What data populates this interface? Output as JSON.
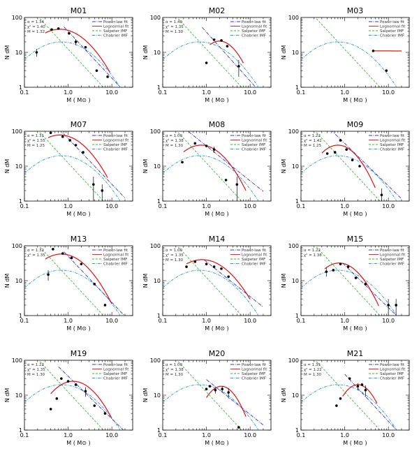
{
  "chart_data": {
    "type": "scatter",
    "layout": "grid-4x3",
    "xlabel": "M ( M⊙ )",
    "ylabel": "N dM",
    "xlim": [
      0.1,
      30
    ],
    "ylim": [
      1,
      100
    ],
    "xscale": "log",
    "yscale": "log",
    "xtick_labels": [
      "0.1",
      "1.0",
      "10.0"
    ],
    "ytick_labels": [
      "1",
      "10",
      "100"
    ],
    "xtick_values": [
      0.1,
      1,
      10
    ],
    "ytick_values": [
      1,
      10,
      100
    ],
    "legend_entries": [
      "Power-law fit",
      "Lognormal fit",
      "Salpeter IMF",
      "Chabrier IMF"
    ],
    "colors": {
      "powerlaw": "#3333cc",
      "lognormal": "#e01010",
      "salpeter": "#33bb33",
      "chabrier": "#2299dd",
      "points": "#000000"
    },
    "panels": [
      {
        "title": "M01",
        "legend_labels": [
          "Power-law fit",
          "Lognormal fit",
          "Salpeter IMF",
          "Chabrier IMF"
        ],
        "stats": [
          "α = 1.34",
          "χ² = 1.40",
          "M = 1.32"
        ],
        "points": [
          {
            "m": 0.19,
            "n": 10,
            "e": 2.5
          },
          {
            "m": 0.42,
            "n": 45,
            "e": 0
          },
          {
            "m": 0.6,
            "n": 48,
            "e": 0
          },
          {
            "m": 1.05,
            "n": 35,
            "e": 0
          },
          {
            "m": 1.5,
            "n": 20,
            "e": 4
          },
          {
            "m": 2.5,
            "n": 14,
            "e": 0
          },
          {
            "m": 4.5,
            "n": 3,
            "e": 0
          },
          {
            "m": 8,
            "n": 2,
            "e": 0
          }
        ],
        "powerlaw": {
          "amp": 40,
          "slope": -1.34,
          "x0": 0.8,
          "x1": 20
        },
        "lognormal": {
          "peak": 46,
          "mc": 0.65,
          "sigma": 0.48,
          "x0": 0.3,
          "x1": 9
        }
      },
      {
        "title": "M02",
        "legend_labels": [
          "Power-law fit",
          "Lognormal fit",
          "Salpeter IMF",
          "Chabrier IMF"
        ],
        "stats": [
          "α = 1.40",
          "χ² = 1.35",
          "M = 1.30"
        ],
        "points": [
          {
            "m": 1.0,
            "n": 5,
            "e": 0
          },
          {
            "m": 1.5,
            "n": 23,
            "e": 0
          },
          {
            "m": 2.2,
            "n": 22,
            "e": 0
          },
          {
            "m": 3,
            "n": 15,
            "e": 0
          },
          {
            "m": 5.5,
            "n": 4,
            "e": 2
          }
        ],
        "powerlaw": {
          "amp": 38,
          "slope": -1.4,
          "x0": 0.8,
          "x1": 20
        },
        "lognormal": {
          "peak": 21,
          "mc": 2.0,
          "sigma": 0.32,
          "x0": 1.2,
          "x1": 7
        }
      },
      {
        "title": "M03",
        "legend_labels": [
          "Power-law fit",
          "Lognormal fit",
          "Salpeter IMF",
          "Chabrier IMF"
        ],
        "stats": [],
        "points": [
          {
            "m": 4.5,
            "n": 11,
            "e": 0
          },
          {
            "m": 9,
            "n": 3,
            "e": 0
          }
        ],
        "powerlaw": {
          "amp": 0,
          "slope": 0,
          "x0": 0,
          "x1": 0
        },
        "lognormal": {
          "peak": 11,
          "mc": 4.5,
          "sigma": 10,
          "x0": 4.5,
          "x1": 20
        }
      },
      {
        "title": "M07",
        "legend_labels": [
          "Power-law fit",
          "Lognormal fit",
          "Salpeter IMF",
          "Chabrier IMF"
        ],
        "stats": [
          "α = 1.31",
          "χ² = 1.55",
          "M = 1.25"
        ],
        "points": [
          {
            "m": 0.4,
            "n": 90,
            "e": 0
          },
          {
            "m": 0.75,
            "n": 70,
            "e": 0
          },
          {
            "m": 1.1,
            "n": 55,
            "e": 0
          },
          {
            "m": 1.5,
            "n": 40,
            "e": 0
          },
          {
            "m": 2.2,
            "n": 25,
            "e": 0
          },
          {
            "m": 3.8,
            "n": 3,
            "e": 2
          },
          {
            "m": 6,
            "n": 2,
            "e": 1
          }
        ],
        "powerlaw": {
          "amp": 62,
          "slope": -1.31,
          "x0": 0.5,
          "x1": 20
        },
        "lognormal": {
          "peak": 78,
          "mc": 0.65,
          "sigma": 0.46,
          "x0": 0.35,
          "x1": 8
        }
      },
      {
        "title": "M08",
        "legend_labels": [
          "Power-law fit",
          "Lognormal fit",
          "Salpeter IMF",
          "Chabrier IMF"
        ],
        "stats": [
          "α = 1.00",
          "χ² = 1.38",
          "M = 1.30"
        ],
        "points": [
          {
            "m": 0.28,
            "n": 13,
            "e": 0
          },
          {
            "m": 0.55,
            "n": 45,
            "e": 0
          },
          {
            "m": 1.0,
            "n": 38,
            "e": 0
          },
          {
            "m": 1.5,
            "n": 30,
            "e": 6
          },
          {
            "m": 2.8,
            "n": 4,
            "e": 0
          },
          {
            "m": 5,
            "n": 3,
            "e": 2
          }
        ],
        "powerlaw": {
          "amp": 38,
          "slope": -1.0,
          "x0": 0.3,
          "x1": 20
        },
        "lognormal": {
          "peak": 40,
          "mc": 0.75,
          "sigma": 0.42,
          "x0": 0.3,
          "x1": 8
        }
      },
      {
        "title": "M09",
        "legend_labels": [
          "Power-law fit",
          "Lognormal fit",
          "Salpeter IMF",
          "Chabrier IMF"
        ],
        "stats": [
          "α = 1.22",
          "χ² = 1.42",
          "M = 1.25"
        ],
        "points": [
          {
            "m": 0.4,
            "n": 23,
            "e": 0
          },
          {
            "m": 0.6,
            "n": 25,
            "e": 0
          },
          {
            "m": 0.8,
            "n": 55,
            "e": 0
          },
          {
            "m": 1.1,
            "n": 30,
            "e": 0
          },
          {
            "m": 1.5,
            "n": 15,
            "e": 0
          },
          {
            "m": 2.2,
            "n": 10,
            "e": 0
          },
          {
            "m": 7,
            "n": 1.5,
            "e": 0.8
          }
        ],
        "powerlaw": {
          "amp": 45,
          "slope": -1.22,
          "x0": 0.3,
          "x1": 20
        },
        "lognormal": {
          "peak": 40,
          "mc": 0.7,
          "sigma": 0.36,
          "x0": 0.3,
          "x1": 5
        }
      },
      {
        "title": "M13",
        "legend_labels": [
          "Power-law fit",
          "Lognormal fit",
          "Salpeter IMF",
          "Chabrier IMF"
        ],
        "stats": [
          "α = 1.32",
          "χ² = 1.35"
        ],
        "points": [
          {
            "m": 0.35,
            "n": 15,
            "e": 5
          },
          {
            "m": 0.45,
            "n": 80,
            "e": 0
          },
          {
            "m": 0.75,
            "n": 60,
            "e": 0
          },
          {
            "m": 1.2,
            "n": 45,
            "e": 0
          },
          {
            "m": 2,
            "n": 30,
            "e": 0
          },
          {
            "m": 4,
            "n": 8,
            "e": 0
          },
          {
            "m": 7,
            "n": 2,
            "e": 0
          }
        ],
        "powerlaw": {
          "amp": 50,
          "slope": -1.32,
          "x0": 0.8,
          "x1": 20
        },
        "lognormal": {
          "peak": 58,
          "mc": 0.7,
          "sigma": 0.45,
          "x0": 0.3,
          "x1": 10
        }
      },
      {
        "title": "M14",
        "legend_labels": [
          "Power-law fit",
          "Lognormal fit",
          "Salpeter IMF",
          "Chabrier IMF"
        ],
        "stats": [
          "α = 1.00",
          "χ² = 1.35",
          "M = 1.30"
        ],
        "points": [
          {
            "m": 0.35,
            "n": 25,
            "e": 0
          },
          {
            "m": 0.55,
            "n": 35,
            "e": 0
          },
          {
            "m": 1.0,
            "n": 30,
            "e": 0
          },
          {
            "m": 1.5,
            "n": 25,
            "e": 0
          },
          {
            "m": 2.2,
            "n": 22,
            "e": 0
          },
          {
            "m": 3.2,
            "n": 13,
            "e": 0
          }
        ],
        "powerlaw": {
          "amp": 35,
          "slope": -1.0,
          "x0": 0.9,
          "x1": 20
        },
        "lognormal": {
          "peak": 40,
          "mc": 0.8,
          "sigma": 0.48,
          "x0": 0.35,
          "x1": 10
        }
      },
      {
        "title": "M15",
        "legend_labels": [
          "Power-law fit",
          "Lognormal fit",
          "Salpeter IMF",
          "Chabrier IMF"
        ],
        "stats": [
          "α = 1.22",
          "χ² = 1.38"
        ],
        "points": [
          {
            "m": 0.38,
            "n": 18,
            "e": 5
          },
          {
            "m": 0.55,
            "n": 20,
            "e": 0
          },
          {
            "m": 0.8,
            "n": 30,
            "e": 0
          },
          {
            "m": 1.2,
            "n": 25,
            "e": 0
          },
          {
            "m": 1.8,
            "n": 12,
            "e": 0
          },
          {
            "m": 3,
            "n": 8,
            "e": 0
          },
          {
            "m": 10,
            "n": 2,
            "e": 1
          },
          {
            "m": 15,
            "n": 2,
            "e": 1
          }
        ],
        "powerlaw": {
          "amp": 28,
          "slope": -1.22,
          "x0": 0.9,
          "x1": 20
        },
        "lognormal": {
          "peak": 32,
          "mc": 0.75,
          "sigma": 0.38,
          "x0": 0.35,
          "x1": 6
        }
      },
      {
        "title": "M19",
        "legend_labels": [
          "Power-law fit",
          "Lognormal fit",
          "Salpeter IMF",
          "Chabrier IMF"
        ],
        "stats": [
          "α = 1.22",
          "χ² = 1.35",
          "M = 1.30"
        ],
        "points": [
          {
            "m": 0.4,
            "n": 4,
            "e": 0
          },
          {
            "m": 0.55,
            "n": 8,
            "e": 0
          },
          {
            "m": 0.7,
            "n": 30,
            "e": 0
          },
          {
            "m": 1.0,
            "n": 25,
            "e": 0
          },
          {
            "m": 1.5,
            "n": 20,
            "e": 0
          },
          {
            "m": 2.5,
            "n": 13,
            "e": 4
          },
          {
            "m": 4,
            "n": 5,
            "e": 0
          },
          {
            "m": 7,
            "n": 3,
            "e": 0
          }
        ],
        "powerlaw": {
          "amp": 35,
          "slope": -1.22,
          "x0": 0.6,
          "x1": 20
        },
        "lognormal": {
          "peak": 25,
          "mc": 1.3,
          "sigma": 0.4,
          "x0": 0.4,
          "x1": 10
        }
      },
      {
        "title": "M20",
        "legend_labels": [
          "Power-law fit",
          "Lognormal fit",
          "Salpeter IMF",
          "Chabrier IMF"
        ],
        "stats": [
          "α = 1.00",
          "χ² = 1.38",
          "M = 1.30"
        ],
        "points": [
          {
            "m": 1.0,
            "n": 15,
            "e": 0
          },
          {
            "m": 1.2,
            "n": 18,
            "e": 0
          },
          {
            "m": 1.6,
            "n": 14,
            "e": 3
          },
          {
            "m": 2.3,
            "n": 15,
            "e": 3
          },
          {
            "m": 3.2,
            "n": 12,
            "e": 4
          },
          {
            "m": 5.5,
            "n": 1.2,
            "e": 0
          }
        ],
        "powerlaw": {
          "amp": 28,
          "slope": -1.0,
          "x0": 1.0,
          "x1": 20
        },
        "lognormal": {
          "peak": 18,
          "mc": 2.2,
          "sigma": 0.28,
          "x0": 1.0,
          "x1": 8
        }
      },
      {
        "title": "M21",
        "legend_labels": [
          "Power-law fit",
          "Lognormal fit",
          "Salpeter IMF",
          "Chabrier IMF"
        ],
        "stats": [
          "α = 1.35",
          "χ² = 1.22",
          "M = 1.30"
        ],
        "points": [
          {
            "m": 0.65,
            "n": 5,
            "e": 0
          },
          {
            "m": 0.8,
            "n": 8,
            "e": 0
          },
          {
            "m": 1.3,
            "n": 30,
            "e": 0
          },
          {
            "m": 2,
            "n": 18,
            "e": 4
          },
          {
            "m": 2.5,
            "n": 20,
            "e": 0
          },
          {
            "m": 3,
            "n": 14,
            "e": 5
          }
        ],
        "powerlaw": {
          "amp": 40,
          "slope": -1.35,
          "x0": 1.0,
          "x1": 20
        },
        "lognormal": {
          "peak": 20,
          "mc": 2.0,
          "sigma": 0.28,
          "x0": 0.9,
          "x1": 5.5
        }
      }
    ]
  }
}
